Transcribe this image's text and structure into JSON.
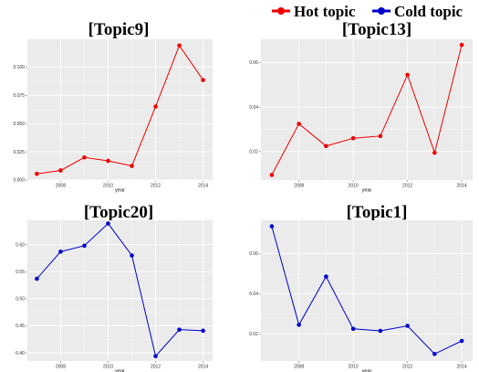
{
  "legend": [
    {
      "label": "Hot topic",
      "color": "#ee0000"
    },
    {
      "label": "Cold topic",
      "color": "#0000cc"
    }
  ],
  "chart_data": [
    {
      "type": "line",
      "title": "[Topic9]",
      "xlabel": "year",
      "ylabel": "",
      "x": [
        2007,
        2008,
        2009,
        2010,
        2011,
        2012,
        2013,
        2014
      ],
      "y": [
        0.0055,
        0.0085,
        0.02,
        0.017,
        0.0125,
        0.065,
        0.119,
        0.0885
      ],
      "xticks": [
        2008,
        2010,
        2012,
        2014
      ],
      "xtick_labels": [
        "2008",
        "2010",
        "2012",
        "2014"
      ],
      "yticks": [
        0.0,
        0.025,
        0.05,
        0.075,
        0.1
      ],
      "ytick_labels": [
        "0.000",
        "0.025",
        "0.050",
        "0.075",
        "0.100"
      ],
      "xlim": [
        2006.6,
        2014.4
      ],
      "ylim": [
        0.0,
        0.1245
      ],
      "series_color": "#ee0000",
      "grid": true
    },
    {
      "type": "line",
      "title": "[Topic13]",
      "xlabel": "year",
      "ylabel": "",
      "x": [
        2007,
        2008,
        2009,
        2010,
        2011,
        2012,
        2013,
        2014
      ],
      "y": [
        0.0095,
        0.0325,
        0.0225,
        0.026,
        0.027,
        0.0545,
        0.0195,
        0.068
      ],
      "xticks": [
        2008,
        2010,
        2012,
        2014
      ],
      "xtick_labels": [
        "2008",
        "2010",
        "2012",
        "2014"
      ],
      "yticks": [
        0.02,
        0.04,
        0.06
      ],
      "ytick_labels": [
        "0.02",
        "0.04",
        "0.06"
      ],
      "xlim": [
        2006.6,
        2014.4
      ],
      "ylim": [
        0.0072,
        0.0705
      ],
      "series_color": "#ee0000",
      "grid": true
    },
    {
      "type": "line",
      "title": "[Topic20]",
      "xlabel": "year",
      "ylabel": "",
      "x": [
        2007,
        2008,
        2009,
        2010,
        2011,
        2012,
        2013,
        2014
      ],
      "y": [
        0.537,
        0.587,
        0.598,
        0.639,
        0.58,
        0.394,
        0.443,
        0.441
      ],
      "xticks": [
        2008,
        2010,
        2012,
        2014
      ],
      "xtick_labels": [
        "2008",
        "2010",
        "2012",
        "2014"
      ],
      "yticks": [
        0.4,
        0.45,
        0.5,
        0.55,
        0.6
      ],
      "ytick_labels": [
        "0.40",
        "0.45",
        "0.50",
        "0.55",
        "0.60"
      ],
      "xlim": [
        2006.6,
        2014.4
      ],
      "ylim": [
        0.385,
        0.645
      ],
      "series_color": "#0000cc",
      "grid": true
    },
    {
      "type": "line",
      "title": "[Topic1]",
      "xlabel": "year",
      "ylabel": "",
      "x": [
        2007,
        2008,
        2009,
        2010,
        2011,
        2012,
        2013,
        2014
      ],
      "y": [
        0.0735,
        0.0245,
        0.0485,
        0.0225,
        0.0215,
        0.024,
        0.01,
        0.0165
      ],
      "xticks": [
        2008,
        2010,
        2012,
        2014
      ],
      "xtick_labels": [
        "2008",
        "2010",
        "2012",
        "2014"
      ],
      "yticks": [
        0.02,
        0.04,
        0.06
      ],
      "ytick_labels": [
        "0.02",
        "0.04",
        "0.06"
      ],
      "xlim": [
        2006.6,
        2014.4
      ],
      "ylim": [
        0.0065,
        0.0765
      ],
      "series_color": "#0000cc",
      "grid": true
    }
  ]
}
